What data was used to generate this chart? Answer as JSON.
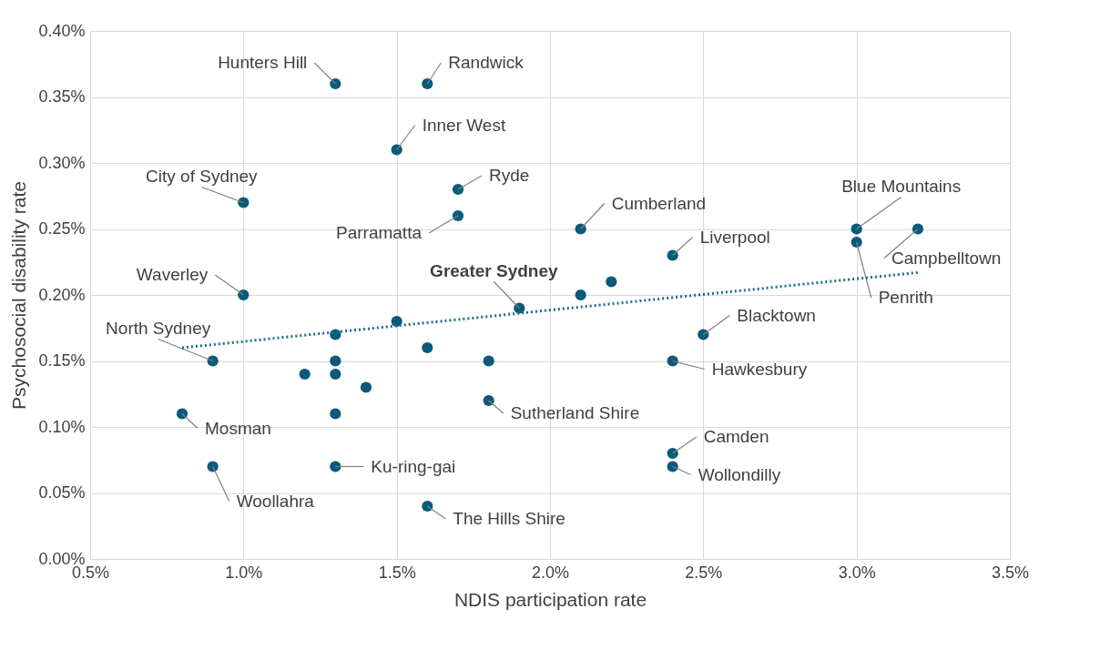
{
  "chart_data": {
    "type": "scatter",
    "xlabel": "NDIS participation rate",
    "ylabel": "Psychosocial disability rate",
    "xlim": [
      0.5,
      3.5
    ],
    "ylim": [
      0,
      0.4
    ],
    "xticks": [
      {
        "value": 0.5,
        "label": "0.5%"
      },
      {
        "value": 1.0,
        "label": "1.0%"
      },
      {
        "value": 1.5,
        "label": "1.5%"
      },
      {
        "value": 2.0,
        "label": "2.0%"
      },
      {
        "value": 2.5,
        "label": "2.5%"
      },
      {
        "value": 3.0,
        "label": "3.0%"
      },
      {
        "value": 3.5,
        "label": "3.5%"
      }
    ],
    "yticks": [
      {
        "value": 0,
        "label": "0.00%"
      },
      {
        "value": 0.05,
        "label": "0.05%"
      },
      {
        "value": 0.1,
        "label": "0.10%"
      },
      {
        "value": 0.15,
        "label": "0.15%"
      },
      {
        "value": 0.2,
        "label": "0.20%"
      },
      {
        "value": 0.25,
        "label": "0.25%"
      },
      {
        "value": 0.3,
        "label": "0.30%"
      },
      {
        "value": 0.35,
        "label": "0.35%"
      },
      {
        "value": 0.4,
        "label": "0.40%"
      }
    ],
    "grid": true,
    "series": [
      {
        "color": "#0b5a7a",
        "marker": "circle",
        "x": [
          1.3,
          1.6,
          1.5,
          1.7,
          1.7,
          1.0,
          2.1,
          2.4,
          3.0,
          3.0,
          3.2,
          1.0,
          1.9,
          2.5,
          0.9,
          2.4,
          1.8,
          0.8,
          2.4,
          2.4,
          0.9,
          1.3,
          1.6,
          2.1,
          2.2,
          1.5,
          1.3,
          1.6,
          1.3,
          1.8,
          1.2,
          1.3,
          1.4,
          1.3
        ],
        "values": [
          0.36,
          0.36,
          0.31,
          0.28,
          0.26,
          0.27,
          0.25,
          0.23,
          0.25,
          0.24,
          0.25,
          0.2,
          0.19,
          0.17,
          0.15,
          0.15,
          0.12,
          0.11,
          0.08,
          0.07,
          0.07,
          0.07,
          0.04,
          0.2,
          0.21,
          0.18,
          0.17,
          0.16,
          0.15,
          0.15,
          0.14,
          0.14,
          0.13,
          0.11
        ]
      },
      {
        "type": "line",
        "color": "#1a6e8a",
        "line_style": "dotted",
        "marker": "none",
        "x": [
          0.8,
          3.2
        ],
        "values": [
          0.16,
          0.217
        ]
      }
    ],
    "annotations": [
      {
        "text": "Hunters Hill",
        "x": 1.3,
        "y": 0.36
      },
      {
        "text": "Randwick",
        "x": 1.6,
        "y": 0.36
      },
      {
        "text": "Inner West",
        "x": 1.5,
        "y": 0.31
      },
      {
        "text": "Ryde",
        "x": 1.7,
        "y": 0.28
      },
      {
        "text": "Parramatta",
        "x": 1.7,
        "y": 0.26
      },
      {
        "text": "City of Sydney",
        "x": 1.0,
        "y": 0.27
      },
      {
        "text": "Cumberland",
        "x": 2.1,
        "y": 0.25
      },
      {
        "text": "Liverpool",
        "x": 2.4,
        "y": 0.23
      },
      {
        "text": "Blue Mountains",
        "x": 3.0,
        "y": 0.25
      },
      {
        "text": "Penrith",
        "x": 3.0,
        "y": 0.24
      },
      {
        "text": "Campbelltown",
        "x": 3.2,
        "y": 0.25
      },
      {
        "text": "Waverley",
        "x": 1.0,
        "y": 0.2
      },
      {
        "text": "Greater Sydney",
        "x": 1.9,
        "y": 0.19
      },
      {
        "text": "Blacktown",
        "x": 2.5,
        "y": 0.17
      },
      {
        "text": "North Sydney",
        "x": 0.9,
        "y": 0.15
      },
      {
        "text": "Hawkesbury",
        "x": 2.4,
        "y": 0.15
      },
      {
        "text": "Sutherland Shire",
        "x": 1.8,
        "y": 0.12
      },
      {
        "text": "Mosman",
        "x": 0.8,
        "y": 0.11
      },
      {
        "text": "Camden",
        "x": 2.4,
        "y": 0.08
      },
      {
        "text": "Wollondilly",
        "x": 2.4,
        "y": 0.07
      },
      {
        "text": "Woollahra",
        "x": 0.9,
        "y": 0.07
      },
      {
        "text": "Ku-ring-gai",
        "x": 1.3,
        "y": 0.07
      },
      {
        "text": "The Hills Shire",
        "x": 1.6,
        "y": 0.04
      }
    ]
  }
}
